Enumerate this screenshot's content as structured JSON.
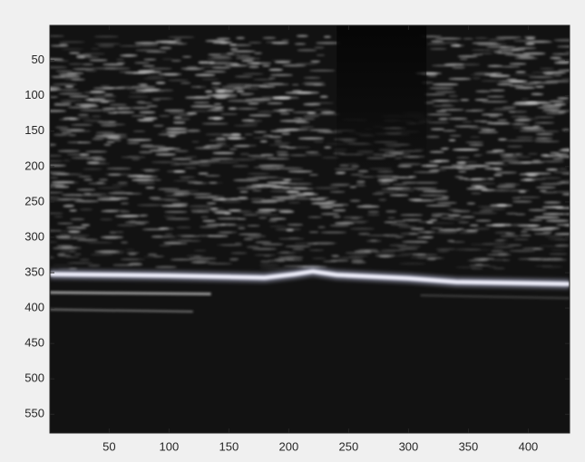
{
  "chart_data": {
    "type": "image",
    "xlim": [
      0.5,
      434.5
    ],
    "ylim": [
      0.5,
      576.5
    ],
    "ydir": "reverse",
    "xticks": [
      50,
      100,
      150,
      200,
      250,
      300,
      350,
      400
    ],
    "yticks": [
      50,
      100,
      150,
      200,
      250,
      300,
      350,
      400,
      450,
      500,
      550
    ]
  }
}
